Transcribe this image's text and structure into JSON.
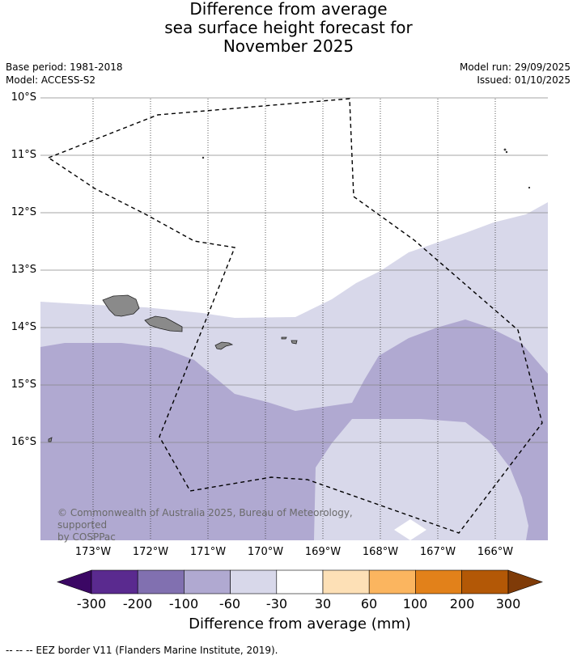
{
  "title": {
    "line1": "Difference from average",
    "line2": "sea surface height forecast for",
    "line3": "November 2025"
  },
  "meta": {
    "base_period": "Base period: 1981-2018",
    "model": "Model: ACCESS-S2",
    "model_run": "Model run: 29/09/2025",
    "issued": "Issued: 01/10/2025"
  },
  "map": {
    "lat_labels": [
      "10°S",
      "11°S",
      "12°S",
      "13°S",
      "14°S",
      "15°S",
      "16°S"
    ],
    "lon_labels": [
      "173°W",
      "172°W",
      "171°W",
      "170°W",
      "169°W",
      "168°W",
      "167°W",
      "166°W"
    ],
    "copyright_line1": "© Commonwealth of Australia 2025, Bureau of Meteorology, supported",
    "copyright_line2": "by COSPPac",
    "colors": {
      "band_minus100_minus60": "#b0a9d1",
      "band_minus60_minus30": "#d8d8ea",
      "land": "#8a8a8a"
    }
  },
  "colorbar": {
    "title": "Difference from average (mm)",
    "tick_labels": [
      "-300",
      "-200",
      "-100",
      "-60",
      "-30",
      "30",
      "60",
      "100",
      "200",
      "300"
    ],
    "colors": [
      "#3b0764",
      "#5a2a8f",
      "#8170b0",
      "#b0a9d1",
      "#d8d8ea",
      "#ffffff",
      "#fde0b6",
      "#fbb55f",
      "#e2811a",
      "#b35806",
      "#7f3b08"
    ]
  },
  "footer": "--  --  -- EEZ border V11 (Flanders Marine Institute, 2019)."
}
